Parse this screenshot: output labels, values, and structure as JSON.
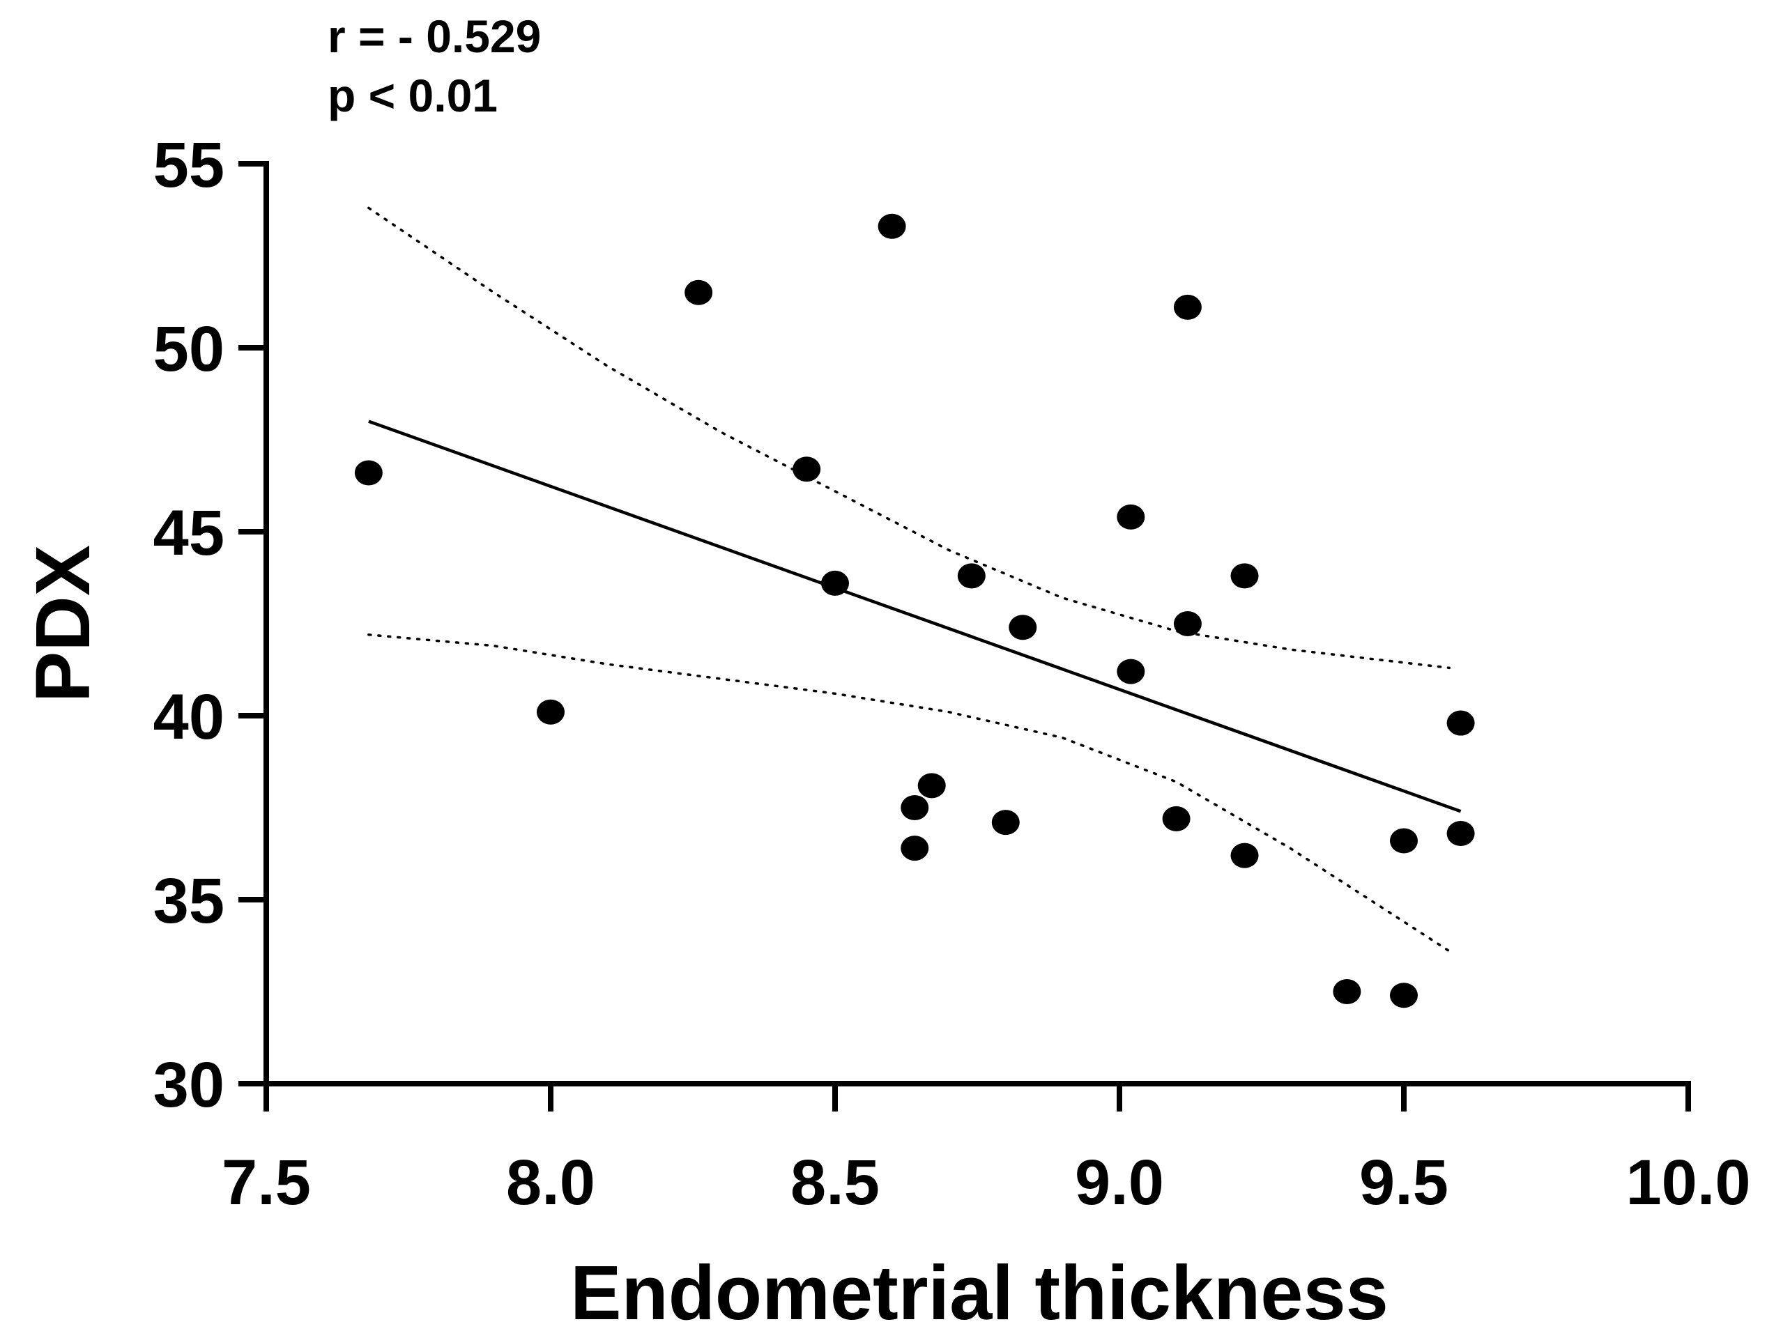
{
  "annotations": {
    "r_text": "r = - 0.529",
    "p_text": "p < 0.01"
  },
  "chart_data": {
    "type": "scatter",
    "xlabel": "Endometrial thickness",
    "ylabel": "PDX",
    "xlim": [
      7.5,
      10.0
    ],
    "ylim": [
      30,
      55
    ],
    "x_ticks": [
      7.5,
      8.0,
      8.5,
      9.0,
      9.5,
      10.0
    ],
    "x_tick_labels": [
      "7.5",
      "8.0",
      "8.5",
      "9.0",
      "9.5",
      "10.0"
    ],
    "y_ticks": [
      30,
      35,
      40,
      45,
      50,
      55
    ],
    "y_tick_labels": [
      "30",
      "35",
      "40",
      "45",
      "50",
      "55"
    ],
    "grid": false,
    "points": [
      {
        "x": 7.68,
        "y": 46.6
      },
      {
        "x": 8.0,
        "y": 40.1
      },
      {
        "x": 8.26,
        "y": 51.5
      },
      {
        "x": 8.45,
        "y": 46.7
      },
      {
        "x": 8.5,
        "y": 43.6
      },
      {
        "x": 8.6,
        "y": 53.3
      },
      {
        "x": 8.64,
        "y": 37.5
      },
      {
        "x": 8.64,
        "y": 36.4
      },
      {
        "x": 8.67,
        "y": 38.1
      },
      {
        "x": 8.74,
        "y": 43.8
      },
      {
        "x": 8.8,
        "y": 37.1
      },
      {
        "x": 8.83,
        "y": 42.4
      },
      {
        "x": 9.02,
        "y": 45.4
      },
      {
        "x": 9.02,
        "y": 41.2
      },
      {
        "x": 9.1,
        "y": 37.2
      },
      {
        "x": 9.12,
        "y": 51.1
      },
      {
        "x": 9.12,
        "y": 42.5
      },
      {
        "x": 9.22,
        "y": 43.8
      },
      {
        "x": 9.22,
        "y": 36.2
      },
      {
        "x": 9.4,
        "y": 32.5
      },
      {
        "x": 9.5,
        "y": 32.4
      },
      {
        "x": 9.5,
        "y": 36.6
      },
      {
        "x": 9.6,
        "y": 39.8
      },
      {
        "x": 9.6,
        "y": 36.8
      }
    ],
    "regression_line": {
      "x": [
        7.68,
        9.6
      ],
      "y": [
        48.0,
        37.4
      ]
    },
    "confidence_band_upper": {
      "x": [
        7.68,
        7.9,
        8.1,
        8.3,
        8.5,
        8.7,
        8.9,
        9.1,
        9.3,
        9.58
      ],
      "y": [
        53.8,
        51.5,
        49.5,
        47.7,
        46.1,
        44.5,
        43.2,
        42.3,
        41.8,
        41.3
      ]
    },
    "confidence_band_lower": {
      "x": [
        7.68,
        7.9,
        8.1,
        8.3,
        8.5,
        8.7,
        8.9,
        9.1,
        9.3,
        9.58
      ],
      "y": [
        42.2,
        41.9,
        41.4,
        41.0,
        40.6,
        40.1,
        39.4,
        38.2,
        36.4,
        33.6
      ]
    }
  }
}
